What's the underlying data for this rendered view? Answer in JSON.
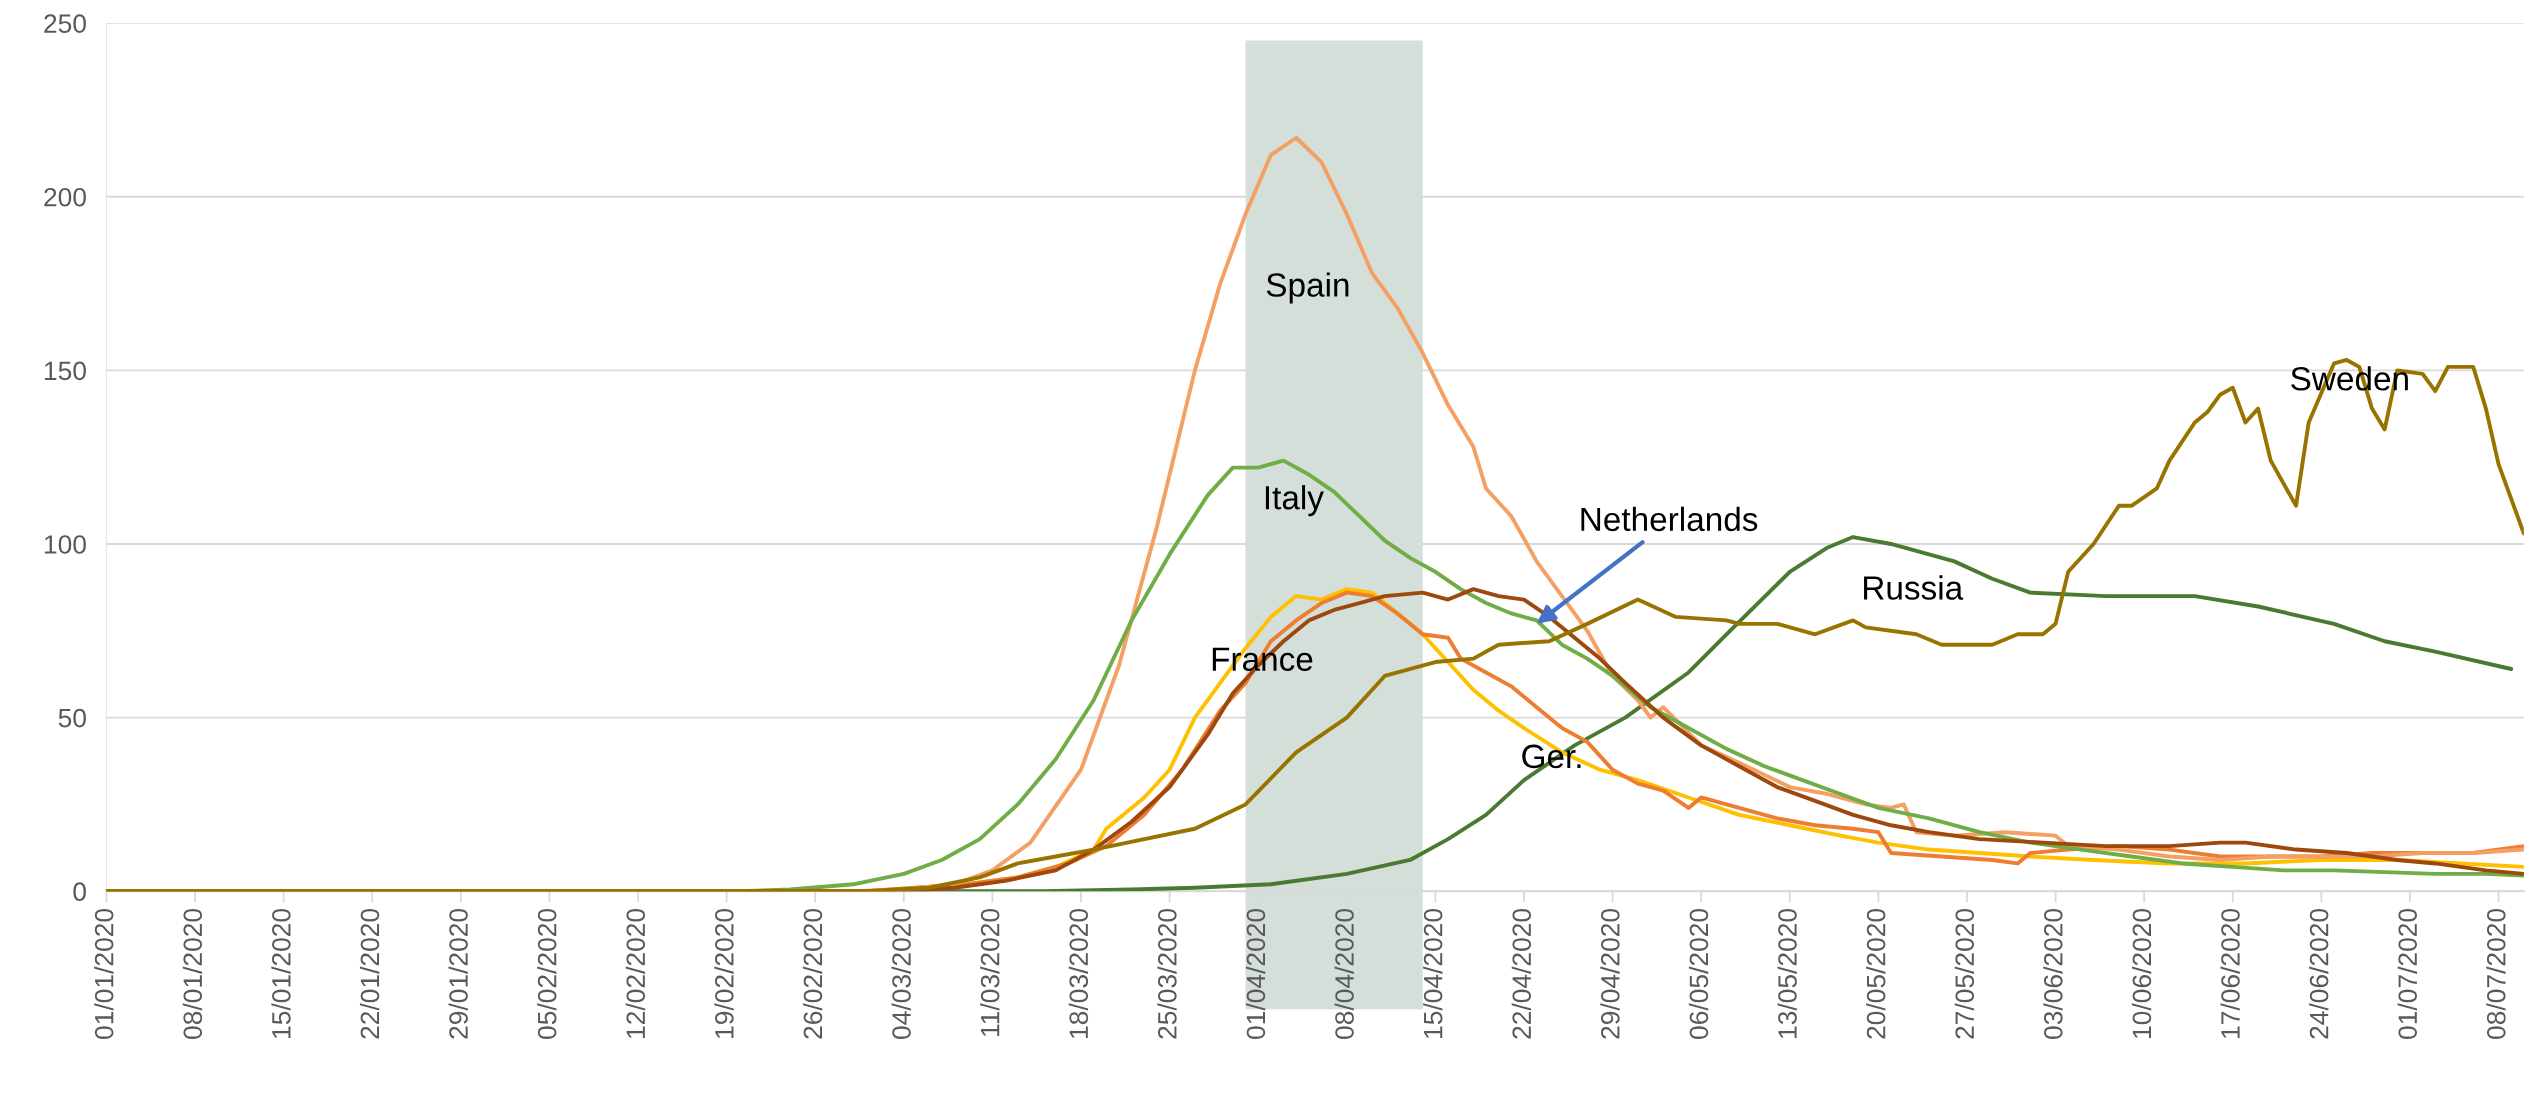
{
  "chart_data": {
    "type": "line",
    "xlim": [
      "2020-01-01",
      "2020-07-10"
    ],
    "xticks": [
      {
        "value": "2020-01-01",
        "label": "01/01/2020"
      },
      {
        "value": "2020-01-08",
        "label": "08/01/2020"
      },
      {
        "value": "2020-01-15",
        "label": "15/01/2020"
      },
      {
        "value": "2020-01-22",
        "label": "22/01/2020"
      },
      {
        "value": "2020-01-29",
        "label": "29/01/2020"
      },
      {
        "value": "2020-02-05",
        "label": "05/02/2020"
      },
      {
        "value": "2020-02-12",
        "label": "12/02/2020"
      },
      {
        "value": "2020-02-19",
        "label": "19/02/2020"
      },
      {
        "value": "2020-02-26",
        "label": "26/02/2020"
      },
      {
        "value": "2020-03-04",
        "label": "04/03/2020"
      },
      {
        "value": "2020-03-11",
        "label": "11/03/2020"
      },
      {
        "value": "2020-03-18",
        "label": "18/03/2020"
      },
      {
        "value": "2020-03-25",
        "label": "25/03/2020"
      },
      {
        "value": "2020-04-01",
        "label": "01/04/2020"
      },
      {
        "value": "2020-04-08",
        "label": "08/04/2020"
      },
      {
        "value": "2020-04-15",
        "label": "15/04/2020"
      },
      {
        "value": "2020-04-22",
        "label": "22/04/2020"
      },
      {
        "value": "2020-04-29",
        "label": "29/04/2020"
      },
      {
        "value": "2020-05-06",
        "label": "06/05/2020"
      },
      {
        "value": "2020-05-13",
        "label": "13/05/2020"
      },
      {
        "value": "2020-05-20",
        "label": "20/05/2020"
      },
      {
        "value": "2020-05-27",
        "label": "27/05/2020"
      },
      {
        "value": "2020-06-03",
        "label": "03/06/2020"
      },
      {
        "value": "2020-06-10",
        "label": "10/06/2020"
      },
      {
        "value": "2020-06-17",
        "label": "17/06/2020"
      },
      {
        "value": "2020-06-24",
        "label": "24/06/2020"
      },
      {
        "value": "2020-07-01",
        "label": "01/07/2020"
      },
      {
        "value": "2020-07-08",
        "label": "08/07/2020"
      }
    ],
    "ylim": [
      0,
      250
    ],
    "yticks": [
      0,
      50,
      100,
      150,
      200,
      250
    ],
    "grid": "y",
    "line_style": "solid",
    "bands": [
      {
        "axis": "x",
        "from": "2020-03-31",
        "to": "2020-04-14",
        "color": "#d5dfd9"
      }
    ],
    "annotations": [
      "Spain",
      "Italy",
      "France",
      {
        "text": "Netherlands",
        "x": "2020-04-23",
        "y": 77
      },
      "Ger.",
      "Russia",
      "Sweden"
    ],
    "series": [
      {
        "color": "#4a7a32",
        "x": [
          "2020-01-01",
          "2020-03-15",
          "2020-03-22",
          "2020-03-27",
          "2020-04-02",
          "2020-04-08",
          "2020-04-13",
          "2020-04-16",
          "2020-04-19",
          "2020-04-22",
          "2020-04-26",
          "2020-04-30",
          "2020-05-05",
          "2020-05-08",
          "2020-05-13",
          "2020-05-16",
          "2020-05-18",
          "2020-05-21",
          "2020-05-26",
          "2020-05-29",
          "2020-06-01",
          "2020-06-07",
          "2020-06-14",
          "2020-06-19",
          "2020-06-25",
          "2020-06-29",
          "2020-07-03",
          "2020-07-09"
        ],
        "values": [
          0,
          0,
          0.5,
          1,
          2,
          5,
          9,
          15,
          22,
          32,
          42,
          50,
          63,
          74,
          92,
          99,
          102,
          100,
          95,
          90,
          86,
          85,
          85,
          82,
          77,
          72,
          69,
          64
        ]
      },
      {
        "color": "#ffc000",
        "x": [
          "2020-01-01",
          "2020-03-01",
          "2020-03-05",
          "2020-03-09",
          "2020-03-13",
          "2020-03-16",
          "2020-03-19",
          "2020-03-20",
          "2020-03-23",
          "2020-03-25",
          "2020-03-27",
          "2020-03-30",
          "2020-03-31",
          "2020-04-02",
          "2020-04-04",
          "2020-04-06",
          "2020-04-08",
          "2020-04-10",
          "2020-04-12",
          "2020-04-14",
          "2020-04-16",
          "2020-04-18",
          "2020-04-20",
          "2020-04-22",
          "2020-04-25",
          "2020-04-28",
          "2020-05-01",
          "2020-05-05",
          "2020-05-09",
          "2020-05-13",
          "2020-05-17",
          "2020-05-20",
          "2020-05-24",
          "2020-05-28",
          "2020-06-01",
          "2020-06-06",
          "2020-06-12",
          "2020-06-18",
          "2020-06-24",
          "2020-06-30",
          "2020-07-05",
          "2020-07-10"
        ],
        "values": [
          0,
          0,
          1,
          2,
          4,
          7,
          12,
          18,
          27,
          35,
          50,
          65,
          70,
          79,
          85,
          84,
          87,
          86,
          80,
          74,
          66,
          58,
          52,
          47,
          40,
          35,
          32,
          27,
          22,
          19,
          16,
          14,
          12,
          11,
          10,
          9,
          8,
          8,
          9,
          9,
          8,
          7
        ]
      },
      {
        "color": "#ed7d31",
        "x": [
          "2020-01-01",
          "2020-03-01",
          "2020-03-05",
          "2020-03-09",
          "2020-03-13",
          "2020-03-17",
          "2020-03-20",
          "2020-03-23",
          "2020-03-26",
          "2020-03-29",
          "2020-03-31",
          "2020-04-02",
          "2020-04-04",
          "2020-04-06",
          "2020-04-08",
          "2020-04-10",
          "2020-04-12",
          "2020-04-14",
          "2020-04-16",
          "2020-04-17",
          "2020-04-19",
          "2020-04-21",
          "2020-04-23",
          "2020-04-25",
          "2020-04-27",
          "2020-04-29",
          "2020-05-01",
          "2020-05-03",
          "2020-05-05",
          "2020-05-06",
          "2020-05-09",
          "2020-05-12",
          "2020-05-15",
          "2020-05-18",
          "2020-05-20",
          "2020-05-21",
          "2020-05-25",
          "2020-05-29",
          "2020-05-31",
          "2020-06-01",
          "2020-06-04",
          "2020-06-08",
          "2020-06-12",
          "2020-06-16",
          "2020-06-20",
          "2020-06-24",
          "2020-06-28",
          "2020-07-02",
          "2020-07-06",
          "2020-07-10"
        ],
        "values": [
          0,
          0,
          1,
          2,
          4,
          8,
          13,
          22,
          35,
          52,
          60,
          72,
          78,
          83,
          86,
          85,
          80,
          74,
          73,
          67,
          63,
          59,
          53,
          47,
          43,
          35,
          31,
          29,
          24,
          27,
          24,
          21,
          19,
          18,
          17,
          11,
          10,
          9,
          8,
          11,
          12,
          13,
          12,
          10,
          10,
          10,
          11,
          11,
          11,
          13
        ]
      },
      {
        "color": "#f4a064",
        "x": [
          "2020-01-01",
          "2020-02-29",
          "2020-03-04",
          "2020-03-08",
          "2020-03-11",
          "2020-03-14",
          "2020-03-18",
          "2020-03-21",
          "2020-03-24",
          "2020-03-27",
          "2020-03-29",
          "2020-03-31",
          "2020-04-02",
          "2020-04-04",
          "2020-04-06",
          "2020-04-08",
          "2020-04-10",
          "2020-04-12",
          "2020-04-14",
          "2020-04-16",
          "2020-04-18",
          "2020-04-19",
          "2020-04-21",
          "2020-04-23",
          "2020-04-25",
          "2020-04-27",
          "2020-04-29",
          "2020-05-01",
          "2020-05-02",
          "2020-05-03",
          "2020-05-06",
          "2020-05-09",
          "2020-05-13",
          "2020-05-16",
          "2020-05-19",
          "2020-05-21",
          "2020-05-22",
          "2020-05-23",
          "2020-05-26",
          "2020-05-30",
          "2020-06-03",
          "2020-06-04",
          "2020-06-08",
          "2020-06-12",
          "2020-06-16",
          "2020-06-20",
          "2020-06-24",
          "2020-06-28",
          "2020-07-02",
          "2020-07-06",
          "2020-07-10"
        ],
        "values": [
          0,
          0,
          0.5,
          2,
          6,
          14,
          35,
          65,
          105,
          150,
          175,
          195,
          212,
          217,
          210,
          195,
          178,
          168,
          155,
          140,
          128,
          116,
          108,
          95,
          85,
          75,
          62,
          55,
          50,
          53,
          42,
          37,
          30,
          28,
          25,
          24,
          25,
          17,
          16,
          17,
          16,
          13,
          12,
          10,
          9,
          10,
          10,
          10,
          11,
          11,
          12
        ]
      },
      {
        "color": "#70ad47",
        "x": [
          "2020-01-01",
          "2020-02-20",
          "2020-02-24",
          "2020-02-29",
          "2020-03-04",
          "2020-03-07",
          "2020-03-10",
          "2020-03-13",
          "2020-03-16",
          "2020-03-19",
          "2020-03-22",
          "2020-03-25",
          "2020-03-28",
          "2020-03-30",
          "2020-04-01",
          "2020-04-03",
          "2020-04-05",
          "2020-04-07",
          "2020-04-09",
          "2020-04-11",
          "2020-04-13",
          "2020-04-15",
          "2020-04-17",
          "2020-04-19",
          "2020-04-21",
          "2020-04-23",
          "2020-04-25",
          "2020-04-27",
          "2020-04-29",
          "2020-05-02",
          "2020-05-05",
          "2020-05-08",
          "2020-05-11",
          "2020-05-14",
          "2020-05-17",
          "2020-05-20",
          "2020-05-24",
          "2020-05-28",
          "2020-06-01",
          "2020-06-05",
          "2020-06-09",
          "2020-06-13",
          "2020-06-17",
          "2020-06-21",
          "2020-06-25",
          "2020-06-29",
          "2020-07-03",
          "2020-07-07",
          "2020-07-10"
        ],
        "values": [
          0,
          0,
          0.5,
          2,
          5,
          9,
          15,
          25,
          38,
          55,
          78,
          97,
          114,
          122,
          122,
          124,
          120,
          115,
          108,
          101,
          96,
          92,
          87,
          83,
          80,
          78,
          71,
          67,
          62,
          53,
          47,
          41,
          36,
          32,
          28,
          24,
          21,
          17,
          14,
          12,
          10,
          8,
          7,
          6,
          6,
          5.5,
          5,
          5,
          4.5
        ]
      },
      {
        "color": "#9e480e",
        "x": [
          "2020-01-01",
          "2020-03-04",
          "2020-03-08",
          "2020-03-12",
          "2020-03-16",
          "2020-03-19",
          "2020-03-22",
          "2020-03-25",
          "2020-03-28",
          "2020-03-30",
          "2020-04-01",
          "2020-04-03",
          "2020-04-05",
          "2020-04-07",
          "2020-04-09",
          "2020-04-11",
          "2020-04-14",
          "2020-04-16",
          "2020-04-18",
          "2020-04-20",
          "2020-04-22",
          "2020-04-24",
          "2020-04-26",
          "2020-04-28",
          "2020-04-30",
          "2020-05-03",
          "2020-05-06",
          "2020-05-09",
          "2020-05-12",
          "2020-05-15",
          "2020-05-18",
          "2020-05-21",
          "2020-05-24",
          "2020-05-28",
          "2020-06-02",
          "2020-06-07",
          "2020-06-12",
          "2020-06-16",
          "2020-06-18",
          "2020-06-22",
          "2020-06-26",
          "2020-06-30",
          "2020-07-03",
          "2020-07-07",
          "2020-07-10"
        ],
        "values": [
          0,
          0,
          1,
          3,
          6,
          12,
          20,
          30,
          45,
          57,
          65,
          72,
          78,
          81,
          83,
          85,
          86,
          84,
          87,
          85,
          84,
          79,
          73,
          67,
          60,
          50,
          42,
          36,
          30,
          26,
          22,
          19,
          17,
          15,
          14,
          13,
          13,
          14,
          14,
          12,
          11,
          9,
          8,
          6,
          5
        ]
      },
      {
        "color": "#997300",
        "x": [
          "2020-01-01",
          "2020-03-01",
          "2020-03-06",
          "2020-03-10",
          "2020-03-13",
          "2020-03-16",
          "2020-03-19",
          "2020-03-23",
          "2020-03-27",
          "2020-03-31",
          "2020-04-04",
          "2020-04-08",
          "2020-04-11",
          "2020-04-15",
          "2020-04-18",
          "2020-04-20",
          "2020-04-24",
          "2020-04-27",
          "2020-05-01",
          "2020-05-04",
          "2020-05-08",
          "2020-05-09",
          "2020-05-12",
          "2020-05-15",
          "2020-05-18",
          "2020-05-19",
          "2020-05-23",
          "2020-05-25",
          "2020-05-29",
          "2020-05-31",
          "2020-06-02",
          "2020-06-03",
          "2020-06-04",
          "2020-06-06",
          "2020-06-08",
          "2020-06-09",
          "2020-06-11",
          "2020-06-12",
          "2020-06-14",
          "2020-06-15",
          "2020-06-16",
          "2020-06-17",
          "2020-06-18",
          "2020-06-19",
          "2020-06-20",
          "2020-06-22",
          "2020-06-23",
          "2020-06-25",
          "2020-06-26",
          "2020-06-27",
          "2020-06-28",
          "2020-06-29",
          "2020-06-30",
          "2020-07-02",
          "2020-07-03",
          "2020-07-04",
          "2020-07-06",
          "2020-07-07",
          "2020-07-08",
          "2020-07-09",
          "2020-07-10"
        ],
        "values": [
          0,
          0,
          1,
          4,
          8,
          10,
          12,
          15,
          18,
          25,
          40,
          50,
          62,
          66,
          67,
          71,
          72,
          77,
          84,
          79,
          78,
          77,
          77,
          74,
          78,
          76,
          74,
          71,
          71,
          74,
          74,
          77,
          92,
          100,
          111,
          111,
          116,
          124,
          135,
          138,
          143,
          145,
          135,
          139,
          124,
          111,
          135,
          152,
          153,
          151,
          139,
          133,
          150,
          149,
          144,
          151,
          151,
          139,
          123,
          113,
          103
        ]
      }
    ]
  }
}
